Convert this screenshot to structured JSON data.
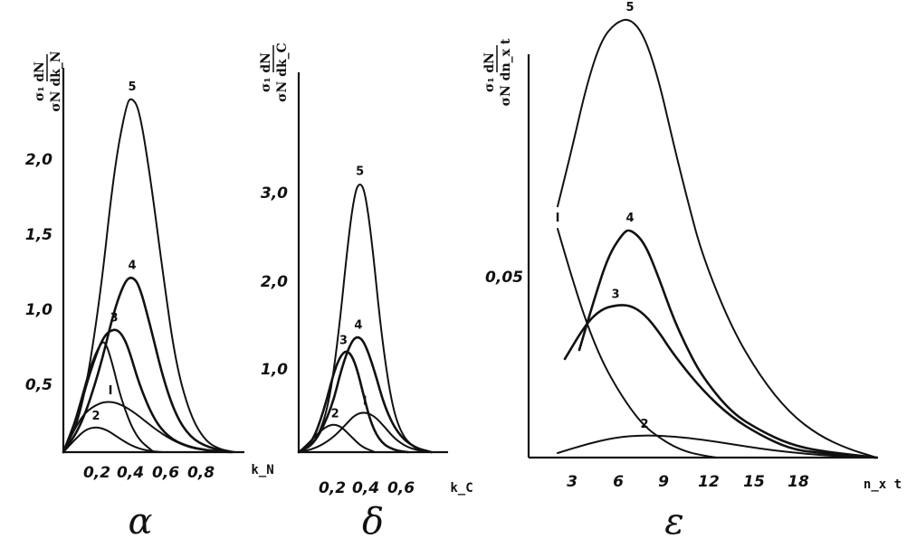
{
  "chart_data": [
    {
      "type": "line",
      "panel": "α",
      "xlabel": "k_N",
      "ylabel": "σ_1/σ_N dN/dk_N",
      "xlim": [
        0,
        1.0
      ],
      "ylim": [
        0,
        2.55
      ],
      "x_ticks": [
        "0,2",
        "0,4",
        "0,6",
        "0,8"
      ],
      "y_ticks": [
        "0,5",
        "1,0",
        "1,5",
        "2,0"
      ],
      "series": [
        {
          "name": "5",
          "x": [
            0,
            0.1,
            0.2,
            0.28,
            0.35,
            0.38,
            0.42,
            0.48,
            0.55,
            0.62,
            0.7,
            0.78,
            0.86,
            0.95
          ],
          "y": [
            0,
            0.25,
            1.0,
            1.9,
            2.35,
            2.38,
            2.3,
            1.85,
            1.2,
            0.6,
            0.25,
            0.08,
            0.02,
            0
          ]
        },
        {
          "name": "4",
          "x": [
            0,
            0.1,
            0.2,
            0.28,
            0.34,
            0.38,
            0.42,
            0.48,
            0.55,
            0.62,
            0.7,
            0.8,
            0.93
          ],
          "y": [
            0,
            0.18,
            0.55,
            0.95,
            1.15,
            1.18,
            1.12,
            0.85,
            0.5,
            0.25,
            0.1,
            0.03,
            0
          ]
        },
        {
          "name": "3",
          "x": [
            0,
            0.08,
            0.15,
            0.22,
            0.28,
            0.32,
            0.36,
            0.42,
            0.5,
            0.58,
            0.68,
            0.8,
            0.92
          ],
          "y": [
            0,
            0.25,
            0.55,
            0.78,
            0.83,
            0.8,
            0.7,
            0.45,
            0.22,
            0.1,
            0.04,
            0.01,
            0
          ]
        },
        {
          "name": "",
          "x": [
            0,
            0.05,
            0.1,
            0.15,
            0.2,
            0.23,
            0.27,
            0.32,
            0.4,
            0.5
          ],
          "y": [
            0,
            0.15,
            0.36,
            0.58,
            0.72,
            0.75,
            0.6,
            0.35,
            0.1,
            0
          ]
        },
        {
          "name": "I",
          "x": [
            0,
            0.06,
            0.12,
            0.2,
            0.26,
            0.32,
            0.4,
            0.5,
            0.6,
            0.7,
            0.8,
            0.9
          ],
          "y": [
            0,
            0.15,
            0.27,
            0.33,
            0.34,
            0.32,
            0.26,
            0.16,
            0.08,
            0.03,
            0.01,
            0
          ]
        },
        {
          "name": "2",
          "x": [
            0,
            0.06,
            0.12,
            0.18,
            0.24,
            0.3,
            0.38,
            0.46,
            0.55
          ],
          "y": [
            0,
            0.08,
            0.15,
            0.17,
            0.15,
            0.1,
            0.04,
            0.01,
            0
          ]
        }
      ]
    },
    {
      "type": "line",
      "panel": "δ",
      "xlabel": "k_C",
      "ylabel": "σ_1/σ_N dN/dk_C",
      "xlim": [
        0,
        0.82
      ],
      "ylim": [
        0,
        4.1
      ],
      "x_ticks": [
        "0,2",
        "0,4",
        "0,6"
      ],
      "y_ticks": [
        "1,0",
        "2,0",
        "3,0"
      ],
      "series": [
        {
          "name": "5",
          "x": [
            0,
            0.1,
            0.18,
            0.24,
            0.3,
            0.34,
            0.37,
            0.4,
            0.44,
            0.5,
            0.56,
            0.62,
            0.7,
            0.78
          ],
          "y": [
            0,
            0.1,
            0.5,
            1.3,
            2.4,
            2.92,
            3.02,
            2.92,
            2.4,
            1.3,
            0.55,
            0.2,
            0.04,
            0
          ]
        },
        {
          "name": "4",
          "x": [
            0,
            0.1,
            0.2,
            0.26,
            0.32,
            0.36,
            0.4,
            0.46,
            0.52,
            0.6,
            0.7,
            0.8
          ],
          "y": [
            0,
            0.1,
            0.5,
            0.95,
            1.25,
            1.3,
            1.22,
            0.9,
            0.5,
            0.2,
            0.05,
            0
          ]
        },
        {
          "name": "3",
          "x": [
            0,
            0.08,
            0.15,
            0.22,
            0.27,
            0.31,
            0.35,
            0.39,
            0.44,
            0.5,
            0.58,
            0.66
          ],
          "y": [
            0,
            0.1,
            0.45,
            0.95,
            1.13,
            1.12,
            0.95,
            0.65,
            0.3,
            0.1,
            0.02,
            0
          ]
        },
        {
          "name": "I",
          "x": [
            0,
            0.1,
            0.2,
            0.28,
            0.34,
            0.4,
            0.46,
            0.52,
            0.58,
            0.65,
            0.72,
            0.78
          ],
          "y": [
            0,
            0.04,
            0.15,
            0.3,
            0.42,
            0.45,
            0.4,
            0.28,
            0.15,
            0.06,
            0.02,
            0
          ]
        },
        {
          "name": "2",
          "x": [
            0,
            0.06,
            0.12,
            0.18,
            0.22,
            0.26,
            0.32,
            0.38,
            0.46
          ],
          "y": [
            0,
            0.1,
            0.22,
            0.3,
            0.31,
            0.28,
            0.17,
            0.06,
            0
          ]
        }
      ]
    },
    {
      "type": "line",
      "panel": "ε",
      "xlabel": "n_x t",
      "ylabel": "σ_1/σ_N dN/dn_x t",
      "xlim": [
        0,
        25
      ],
      "ylim": [
        0,
        0.1
      ],
      "x_ticks": [
        "3",
        "6",
        "9",
        "12",
        "15",
        "18"
      ],
      "y_ticks": [
        "0,05"
      ],
      "series": [
        {
          "name": "5",
          "x": [
            2,
            3,
            4,
            5,
            6,
            7,
            8,
            9,
            10,
            11,
            12,
            14,
            16,
            18,
            20,
            22,
            24
          ],
          "y": [
            0.056,
            0.069,
            0.083,
            0.093,
            0.097,
            0.098,
            0.094,
            0.084,
            0.07,
            0.057,
            0.045,
            0.029,
            0.018,
            0.01,
            0.005,
            0.002,
            0
          ]
        },
        {
          "name": "4",
          "x": [
            3.5,
            4.5,
            5.5,
            6.5,
            7,
            8,
            9,
            10,
            11,
            12,
            14,
            16,
            18,
            20,
            24
          ],
          "y": [
            0.024,
            0.035,
            0.045,
            0.05,
            0.051,
            0.048,
            0.04,
            0.031,
            0.024,
            0.018,
            0.01,
            0.006,
            0.003,
            0.0015,
            0
          ]
        },
        {
          "name": "3",
          "x": [
            2.5,
            4,
            5,
            6,
            7,
            8,
            9,
            10,
            12,
            14,
            16,
            18,
            20,
            24
          ],
          "y": [
            0.022,
            0.03,
            0.033,
            0.034,
            0.034,
            0.032,
            0.028,
            0.023,
            0.015,
            0.009,
            0.005,
            0.002,
            0.001,
            0
          ]
        },
        {
          "name": "I",
          "x": [
            2,
            3,
            4,
            5,
            6,
            7,
            8,
            9,
            10,
            11,
            12,
            13
          ],
          "y": [
            0.051,
            0.04,
            0.03,
            0.022,
            0.016,
            0.011,
            0.007,
            0.0045,
            0.0025,
            0.0012,
            0.0005,
            0
          ]
        },
        {
          "name": "2",
          "x": [
            2,
            4,
            6,
            8,
            10,
            12,
            14,
            16,
            18,
            20,
            22,
            24
          ],
          "y": [
            0.001,
            0.003,
            0.0045,
            0.005,
            0.0047,
            0.004,
            0.003,
            0.002,
            0.0012,
            0.0006,
            0.0002,
            0
          ]
        }
      ]
    }
  ]
}
